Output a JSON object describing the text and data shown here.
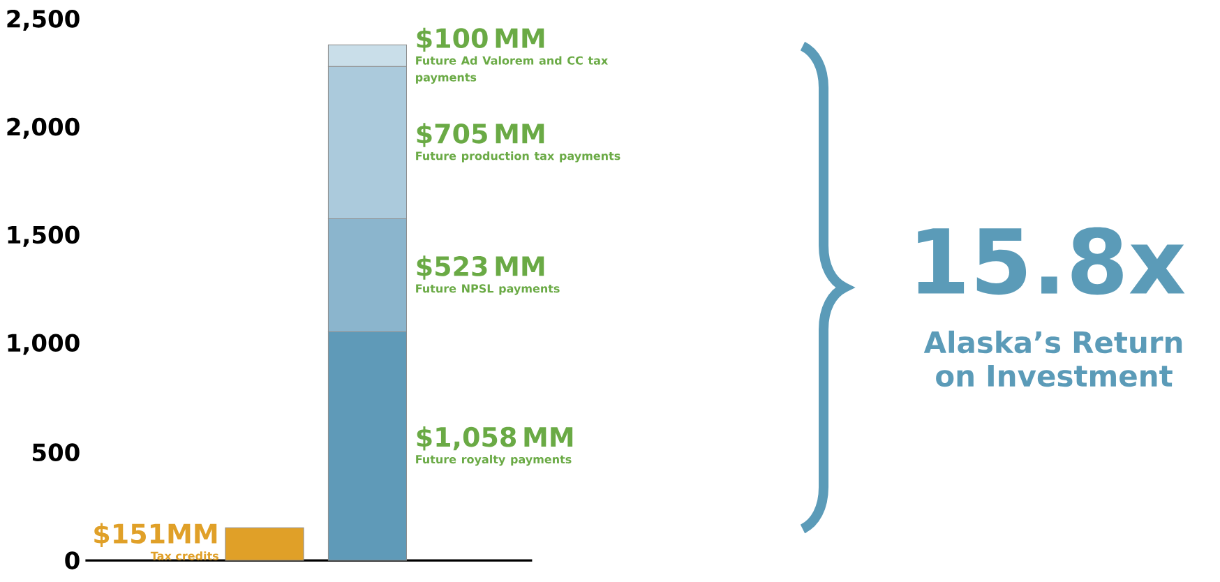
{
  "chart_data": {
    "type": "bar",
    "stacked": true,
    "categories": [
      null,
      null
    ],
    "series": [
      {
        "name": "Tax credits",
        "color": "#e0a028",
        "values": [
          151,
          null
        ]
      },
      {
        "name": "Future royalty payments",
        "color": "#5f9ab8",
        "values": [
          null,
          1058
        ]
      },
      {
        "name": "Future NPSL payments",
        "color": "#8bb5cd",
        "values": [
          null,
          523
        ]
      },
      {
        "name": "Future production tax payments",
        "color": "#abcadc",
        "values": [
          null,
          705
        ]
      },
      {
        "name": "Future Ad Valorem and CC tax payments",
        "color": "#c9dee9",
        "values": [
          null,
          100
        ]
      }
    ],
    "ylim": [
      0,
      2500
    ],
    "yticks": [
      0,
      500,
      {
        "value": 1000,
        "label": "1,000"
      },
      {
        "value": 1500,
        "label": "1,500"
      },
      {
        "value": 2000,
        "label": "2,000"
      },
      {
        "value": 2500,
        "label": "2,500"
      }
    ],
    "annotations": [
      "$151MM",
      "$1,058 MM",
      "$523 MM",
      "$705 MM",
      "$100 MM",
      "15.8x",
      "Alaska’s Return on Investment"
    ]
  }
}
